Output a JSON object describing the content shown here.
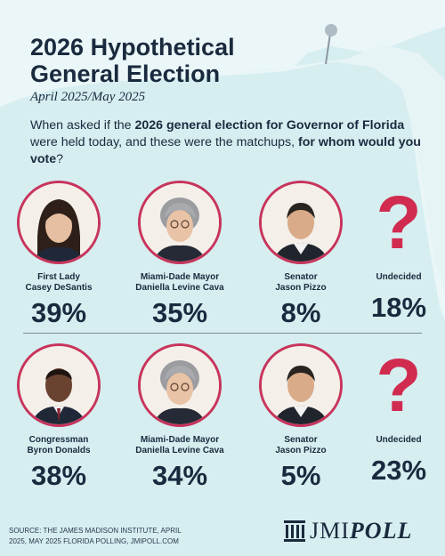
{
  "header": {
    "title_line1": "2026 Hypothetical",
    "title_line2": "General Election",
    "subtitle": "April 2025/May 2025",
    "question_part1": "When asked if the ",
    "question_bold1": "2026 general election for Governor of Florida",
    "question_part2": " were held today, and these were the matchups, ",
    "question_bold2": "for whom would you vote",
    "question_part3": "?"
  },
  "chart_data": [
    {
      "type": "table",
      "title": "",
      "categories": [
        "First Lady Casey DeSantis",
        "Miami-Dade Mayor Daniella Levine Cava",
        "Senator Jason Pizzo",
        "Undecided"
      ],
      "values": [
        39,
        35,
        8,
        18
      ],
      "unit": "%",
      "candidates": [
        {
          "line1": "First Lady",
          "line2": "Casey DeSantis",
          "pct": "39%",
          "value": 39,
          "photo": "portrait-casey-desantis"
        },
        {
          "line1": "Miami-Dade Mayor",
          "line2": "Daniella Levine Cava",
          "pct": "35%",
          "value": 35,
          "photo": "portrait-daniella-levine-cava"
        },
        {
          "line1": "Senator",
          "line2": "Jason Pizzo",
          "pct": "8%",
          "value": 8,
          "photo": "portrait-jason-pizzo"
        },
        {
          "line1": "Undecided",
          "line2": "",
          "pct": "18%",
          "value": 18,
          "photo": "question-mark-icon"
        }
      ]
    },
    {
      "type": "table",
      "title": "",
      "categories": [
        "Congressman Byron Donalds",
        "Miami-Dade Mayor Daniella Levine Cava",
        "Senator Jason Pizzo",
        "Undecided"
      ],
      "values": [
        38,
        34,
        5,
        23
      ],
      "unit": "%",
      "candidates": [
        {
          "line1": "Congressman",
          "line2": "Byron Donalds",
          "pct": "38%",
          "value": 38,
          "photo": "portrait-byron-donalds"
        },
        {
          "line1": "Miami-Dade Mayor",
          "line2": "Daniella Levine Cava",
          "pct": "34%",
          "value": 34,
          "photo": "portrait-daniella-levine-cava"
        },
        {
          "line1": "Senator",
          "line2": "Jason Pizzo",
          "pct": "5%",
          "value": 5,
          "photo": "portrait-jason-pizzo"
        },
        {
          "line1": "Undecided",
          "line2": "",
          "pct": "23%",
          "value": 23,
          "photo": "question-mark-icon"
        }
      ]
    }
  ],
  "question_mark": "?",
  "footer": {
    "source_line1": "SOURCE: THE JAMES MADISON INSTITUTE, APRIL",
    "source_line2": "2025, MAY 2025 FLORIDA POLLING, JMIPOLL.COM",
    "logo_part1": "JMI",
    "logo_part2": "POLL"
  },
  "colors": {
    "background": "#d6eef0",
    "map": "#eaf6f7",
    "ring": "#c8345c",
    "question_mark": "#d12b50",
    "text": "#1a2a3e"
  }
}
